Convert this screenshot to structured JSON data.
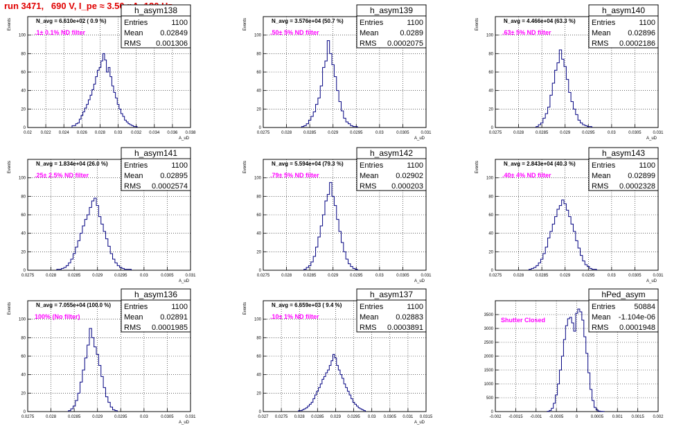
{
  "page_title": "run 3471,   690 V, I_pe ≈ 3.50 nA, 120 Hz",
  "stats_labels": {
    "entries": "Entries",
    "mean": "Mean",
    "rms": "RMS"
  },
  "colors": {
    "histogram": "#000080",
    "navg_text": "#000000",
    "filter_text": "#ff00ff",
    "title_text": "#e00000",
    "grid": "#000000"
  },
  "chart_data": [
    {
      "type": "histogram",
      "name": "h_asym138",
      "stats": {
        "entries": "1100",
        "mean": "0.02849",
        "rms": "0.001306"
      },
      "annotation_navg": "N_avg = 6.610e+02 ( 0.9 %)",
      "annotation_filter": ".1± 0.1% ND filter",
      "xlabel": "A_uD",
      "ylabel": "Events",
      "xlim": [
        0.02,
        0.038
      ],
      "xticks": [
        "0.02",
        "0.022",
        "0.024",
        "0.026",
        "0.028",
        "0.03",
        "0.032",
        "0.034",
        "0.036",
        "0.038"
      ],
      "ylim": [
        0,
        120
      ],
      "yticks": [
        "0",
        "20",
        "40",
        "60",
        "80",
        "100"
      ],
      "grid": true,
      "x": [
        0.025,
        0.0252,
        0.0254,
        0.0256,
        0.0258,
        0.026,
        0.0262,
        0.0264,
        0.0266,
        0.0268,
        0.027,
        0.0272,
        0.0274,
        0.0276,
        0.0278,
        0.028,
        0.0282,
        0.0284,
        0.0286,
        0.0288,
        0.029,
        0.0292,
        0.0294,
        0.0296,
        0.0298,
        0.03,
        0.0302,
        0.0304,
        0.0306,
        0.0308,
        0.031,
        0.0312,
        0.0314,
        0.0316,
        0.0318,
        0.032
      ],
      "values": [
        2,
        2,
        4,
        5,
        9,
        13,
        17,
        21,
        25,
        30,
        35,
        41,
        47,
        55,
        62,
        65,
        72,
        80,
        73,
        60,
        65,
        55,
        45,
        38,
        32,
        25,
        20,
        15,
        12,
        8,
        6,
        4,
        3,
        2,
        1,
        1
      ]
    },
    {
      "type": "histogram",
      "name": "h_asym139",
      "stats": {
        "entries": "1100",
        "mean": "0.0289",
        "rms": "0.0002075"
      },
      "annotation_navg": "N_avg = 3.576e+04 (50.7 %)",
      "annotation_filter": ".50± 5% ND filter",
      "xlabel": "A_uD",
      "ylabel": "Events",
      "xlim": [
        0.0275,
        0.031
      ],
      "xticks": [
        "0.0275",
        "0.028",
        "0.0285",
        "0.029",
        "0.0295",
        "0.03",
        "0.0305",
        "0.031"
      ],
      "ylim": [
        0,
        120
      ],
      "yticks": [
        "0",
        "20",
        "40",
        "60",
        "80",
        "100"
      ],
      "grid": true,
      "x": [
        0.02835,
        0.0284,
        0.02845,
        0.0285,
        0.02855,
        0.0286,
        0.02865,
        0.0287,
        0.02875,
        0.0288,
        0.02885,
        0.0289,
        0.02895,
        0.029,
        0.02905,
        0.0291,
        0.02915,
        0.0292,
        0.02925,
        0.0293,
        0.02935,
        0.0294,
        0.02945,
        0.0295
      ],
      "values": [
        1,
        2,
        4,
        8,
        12,
        17,
        25,
        32,
        45,
        65,
        72,
        94,
        80,
        68,
        55,
        40,
        28,
        18,
        10,
        6,
        4,
        2,
        1,
        1
      ]
    },
    {
      "type": "histogram",
      "name": "h_asym140",
      "stats": {
        "entries": "1100",
        "mean": "0.02896",
        "rms": "0.0002186"
      },
      "annotation_navg": "N_avg = 4.466e+04 (63.3 %)",
      "annotation_filter": ".63± 5% ND filter",
      "xlabel": "A_uD",
      "ylabel": "Events",
      "xlim": [
        0.0275,
        0.031
      ],
      "xticks": [
        "0.0275",
        "0.028",
        "0.0285",
        "0.029",
        "0.0295",
        "0.03",
        "0.0305",
        "0.031"
      ],
      "ylim": [
        0,
        120
      ],
      "yticks": [
        "0",
        "20",
        "40",
        "60",
        "80",
        "100"
      ],
      "grid": true,
      "x": [
        0.0284,
        0.02845,
        0.0285,
        0.02855,
        0.0286,
        0.02865,
        0.0287,
        0.02875,
        0.0288,
        0.02885,
        0.0289,
        0.02895,
        0.029,
        0.02905,
        0.0291,
        0.02915,
        0.0292,
        0.02925,
        0.0293,
        0.02935,
        0.0294,
        0.02945,
        0.0295,
        0.02955
      ],
      "values": [
        1,
        3,
        5,
        10,
        15,
        22,
        35,
        48,
        62,
        70,
        84,
        74,
        66,
        52,
        38,
        28,
        20,
        14,
        8,
        5,
        3,
        2,
        1,
        1
      ]
    },
    {
      "type": "histogram",
      "name": "h_asym141",
      "stats": {
        "entries": "1100",
        "mean": "0.02895",
        "rms": "0.0002574"
      },
      "annotation_navg": "N_avg = 1.834e+04 (26.0 %)",
      "annotation_filter": ".25± 2.5% ND filter",
      "xlabel": "A_uD",
      "ylabel": "Events",
      "xlim": [
        0.0275,
        0.031
      ],
      "xticks": [
        "0.0275",
        "0.028",
        "0.0285",
        "0.029",
        "0.0295",
        "0.03",
        "0.0305",
        "0.031"
      ],
      "ylim": [
        0,
        120
      ],
      "yticks": [
        "0",
        "20",
        "40",
        "60",
        "80",
        "100"
      ],
      "grid": true,
      "x": [
        0.02815,
        0.0282,
        0.02825,
        0.0283,
        0.02835,
        0.0284,
        0.02845,
        0.0285,
        0.02855,
        0.0286,
        0.02865,
        0.0287,
        0.02875,
        0.0288,
        0.02885,
        0.0289,
        0.02895,
        0.029,
        0.02905,
        0.0291,
        0.02915,
        0.0292,
        0.02925,
        0.0293,
        0.02935,
        0.0294,
        0.02945,
        0.0295,
        0.02955,
        0.0296,
        0.02965,
        0.0297
      ],
      "values": [
        1,
        1,
        2,
        3,
        5,
        8,
        12,
        18,
        25,
        32,
        40,
        48,
        55,
        60,
        68,
        75,
        78,
        70,
        58,
        50,
        42,
        34,
        26,
        18,
        12,
        8,
        5,
        3,
        2,
        1,
        1,
        1
      ]
    },
    {
      "type": "histogram",
      "name": "h_asym142",
      "stats": {
        "entries": "1100",
        "mean": "0.02902",
        "rms": "0.000203"
      },
      "annotation_navg": "N_avg = 5.594e+04 (79.3 %)",
      "annotation_filter": ".79± 5% ND filter",
      "xlabel": "A_uD",
      "ylabel": "Events",
      "xlim": [
        0.0275,
        0.031
      ],
      "xticks": [
        "0.0275",
        "0.028",
        "0.0285",
        "0.029",
        "0.0295",
        "0.03",
        "0.0305",
        "0.031"
      ],
      "ylim": [
        0,
        120
      ],
      "yticks": [
        "0",
        "20",
        "40",
        "60",
        "80",
        "100"
      ],
      "grid": true,
      "x": [
        0.0284,
        0.02845,
        0.0285,
        0.02855,
        0.0286,
        0.02865,
        0.0287,
        0.02875,
        0.0288,
        0.02885,
        0.0289,
        0.02895,
        0.029,
        0.02905,
        0.0291,
        0.02915,
        0.0292,
        0.02925,
        0.0293,
        0.02935,
        0.0294,
        0.02945,
        0.0295
      ],
      "values": [
        1,
        3,
        5,
        9,
        15,
        25,
        36,
        48,
        60,
        75,
        82,
        95,
        80,
        70,
        55,
        42,
        30,
        20,
        12,
        7,
        4,
        2,
        1
      ]
    },
    {
      "type": "histogram",
      "name": "h_asym143",
      "stats": {
        "entries": "1100",
        "mean": "0.02899",
        "rms": "0.0002328"
      },
      "annotation_navg": "N_avg = 2.843e+04 (40.3 %)",
      "annotation_filter": ".40± 4% ND filter",
      "xlabel": "A_uD",
      "ylabel": "Events",
      "xlim": [
        0.0275,
        0.031
      ],
      "xticks": [
        "0.0275",
        "0.028",
        "0.0285",
        "0.029",
        "0.0295",
        "0.03",
        "0.0305",
        "0.031"
      ],
      "ylim": [
        0,
        120
      ],
      "yticks": [
        "0",
        "20",
        "40",
        "60",
        "80",
        "100"
      ],
      "grid": true,
      "x": [
        0.02825,
        0.0283,
        0.02835,
        0.0284,
        0.02845,
        0.0285,
        0.02855,
        0.0286,
        0.02865,
        0.0287,
        0.02875,
        0.0288,
        0.02885,
        0.0289,
        0.02895,
        0.029,
        0.02905,
        0.0291,
        0.02915,
        0.0292,
        0.02925,
        0.0293,
        0.02935,
        0.0294,
        0.02945,
        0.0295,
        0.02955,
        0.0296,
        0.02965
      ],
      "values": [
        1,
        2,
        3,
        5,
        8,
        12,
        18,
        25,
        35,
        42,
        50,
        58,
        66,
        70,
        76,
        72,
        65,
        58,
        50,
        42,
        32,
        24,
        16,
        10,
        6,
        4,
        2,
        1,
        1
      ]
    },
    {
      "type": "histogram",
      "name": "h_asym136",
      "stats": {
        "entries": "1100",
        "mean": "0.02891",
        "rms": "0.0001985"
      },
      "annotation_navg": "N_avg = 7.055e+04 (100.0 %)",
      "annotation_filter": "100% (No filter)",
      "xlabel": "A_uD",
      "ylabel": "Events",
      "xlim": [
        0.0275,
        0.031
      ],
      "xticks": [
        "0.0275",
        "0.028",
        "0.0285",
        "0.029",
        "0.0295",
        "0.03",
        "0.0305",
        "0.031"
      ],
      "ylim": [
        0,
        120
      ],
      "yticks": [
        "0",
        "20",
        "40",
        "60",
        "80",
        "100"
      ],
      "grid": true,
      "x": [
        0.0284,
        0.02845,
        0.0285,
        0.02855,
        0.0286,
        0.02865,
        0.0287,
        0.02875,
        0.0288,
        0.02885,
        0.0289,
        0.02895,
        0.029,
        0.02905,
        0.0291,
        0.02915,
        0.0292,
        0.02925,
        0.0293,
        0.02935,
        0.0294
      ],
      "values": [
        1,
        3,
        6,
        12,
        20,
        32,
        45,
        58,
        72,
        90,
        80,
        70,
        62,
        50,
        38,
        26,
        16,
        10,
        5,
        2,
        1
      ]
    },
    {
      "type": "histogram",
      "name": "h_asym137",
      "stats": {
        "entries": "1100",
        "mean": "0.02883",
        "rms": "0.0003891"
      },
      "annotation_navg": "N_avg = 6.659e+03 ( 9.4 %)",
      "annotation_filter": ".10± 1% ND filter",
      "xlabel": "A_uD",
      "ylabel": "Events",
      "xlim": [
        0.027,
        0.0315
      ],
      "xticks": [
        "0.027",
        "0.0275",
        "0.028",
        "0.0285",
        "0.029",
        "0.0295",
        "0.03",
        "0.0305",
        "0.031",
        "0.0315"
      ],
      "ylim": [
        0,
        120
      ],
      "yticks": [
        "0",
        "20",
        "40",
        "60",
        "80",
        "100"
      ],
      "grid": true,
      "x": [
        0.028,
        0.02805,
        0.0281,
        0.02815,
        0.0282,
        0.02825,
        0.0283,
        0.02835,
        0.0284,
        0.02845,
        0.0285,
        0.02855,
        0.0286,
        0.02865,
        0.0287,
        0.02875,
        0.0288,
        0.02885,
        0.0289,
        0.02895,
        0.029,
        0.02905,
        0.0291,
        0.02915,
        0.0292,
        0.02925,
        0.0293,
        0.02935,
        0.0294,
        0.02945,
        0.0295,
        0.02955,
        0.0296,
        0.02965,
        0.0297,
        0.02975,
        0.0298
      ],
      "values": [
        1,
        1,
        2,
        3,
        4,
        6,
        8,
        10,
        14,
        18,
        22,
        26,
        30,
        35,
        38,
        42,
        45,
        50,
        55,
        62,
        58,
        50,
        45,
        40,
        36,
        30,
        26,
        22,
        18,
        14,
        10,
        8,
        6,
        4,
        3,
        2,
        1
      ]
    },
    {
      "type": "histogram",
      "name": "hPed_asym",
      "stats": {
        "entries": "50884",
        "mean": "-1.104e-06",
        "rms": "0.0001948"
      },
      "annotation_filter": "Shutter Closed",
      "xlim": [
        -0.002,
        0.002
      ],
      "xticks": [
        "-0.002",
        "-0.0015",
        "-0.001",
        "-0.0005",
        "0",
        "0.0005",
        "0.001",
        "0.0015",
        "0.002"
      ],
      "ylim": [
        0,
        4000
      ],
      "yticks": [
        "0",
        "500",
        "1000",
        "1500",
        "2000",
        "2500",
        "3000",
        "3500"
      ],
      "grid": true,
      "x": [
        -0.0007,
        -0.00065,
        -0.0006,
        -0.00055,
        -0.0005,
        -0.00045,
        -0.0004,
        -0.00035,
        -0.0003,
        -0.00025,
        -0.0002,
        -0.00015,
        -0.0001,
        -5e-05,
        0,
        5e-05,
        0.0001,
        0.00015,
        0.0002,
        0.00025,
        0.0003,
        0.00035,
        0.0004,
        0.00045,
        0.0005,
        0.00055,
        0.0006,
        0.00065
      ],
      "values": [
        10,
        40,
        120,
        300,
        600,
        1000,
        1500,
        2000,
        2600,
        3100,
        3350,
        3400,
        3200,
        2900,
        3550,
        3700,
        3600,
        3300,
        2700,
        2100,
        1400,
        800,
        400,
        150,
        60,
        20,
        10,
        5
      ]
    }
  ]
}
